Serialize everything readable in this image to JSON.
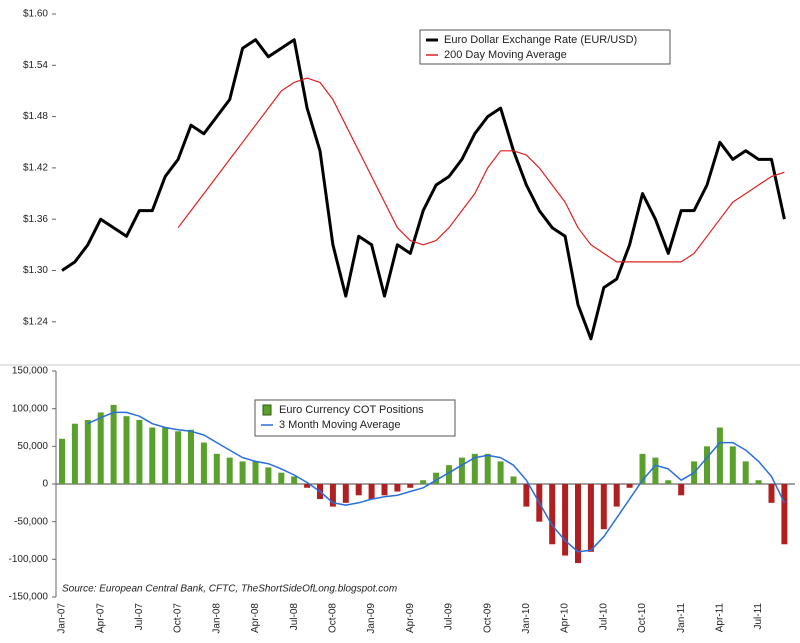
{
  "chart_data": [
    {
      "type": "line",
      "ylim": [
        1.2,
        1.6
      ],
      "yticks": [
        {
          "value": 1.24,
          "label": "$1.24"
        },
        {
          "value": 1.3,
          "label": "$1.30"
        },
        {
          "value": 1.36,
          "label": "$1.36"
        },
        {
          "value": 1.42,
          "label": "$1.42"
        },
        {
          "value": 1.48,
          "label": "$1.48"
        },
        {
          "value": 1.54,
          "label": "$1.54"
        },
        {
          "value": 1.6,
          "label": "$1.60"
        }
      ],
      "series": [
        {
          "name": "Euro Dollar Exchange Rate (EUR/USD)",
          "color": "#000000",
          "values": [
            1.3,
            1.31,
            1.33,
            1.36,
            1.35,
            1.34,
            1.37,
            1.37,
            1.41,
            1.43,
            1.47,
            1.46,
            1.48,
            1.5,
            1.56,
            1.57,
            1.55,
            1.56,
            1.57,
            1.49,
            1.44,
            1.33,
            1.27,
            1.34,
            1.33,
            1.27,
            1.33,
            1.32,
            1.37,
            1.4,
            1.41,
            1.43,
            1.46,
            1.48,
            1.49,
            1.44,
            1.4,
            1.37,
            1.35,
            1.34,
            1.26,
            1.22,
            1.28,
            1.29,
            1.33,
            1.39,
            1.36,
            1.32,
            1.37,
            1.37,
            1.4,
            1.45,
            1.43,
            1.44,
            1.43,
            1.43,
            1.36
          ]
        },
        {
          "name": "200 Day Moving Average",
          "color": "#e02020",
          "values": [
            null,
            null,
            null,
            null,
            null,
            null,
            null,
            null,
            null,
            1.35,
            1.37,
            1.39,
            1.41,
            1.43,
            1.45,
            1.47,
            1.49,
            1.51,
            1.52,
            1.525,
            1.52,
            1.5,
            1.47,
            1.44,
            1.41,
            1.38,
            1.35,
            1.335,
            1.33,
            1.335,
            1.35,
            1.37,
            1.39,
            1.42,
            1.44,
            1.44,
            1.435,
            1.42,
            1.4,
            1.38,
            1.35,
            1.33,
            1.32,
            1.31,
            1.31,
            1.31,
            1.31,
            1.31,
            1.31,
            1.32,
            1.34,
            1.36,
            1.38,
            1.39,
            1.4,
            1.41,
            1.415
          ]
        }
      ]
    },
    {
      "type": "bar",
      "annotation": "Source: European Central Bank, CFTC, TheShortSideOfLong.blogspot.com",
      "categories": [
        "Jan-07",
        null,
        null,
        "Apr-07",
        null,
        null,
        "Jul-07",
        null,
        null,
        "Oct-07",
        null,
        null,
        "Jan-08",
        null,
        null,
        "Apr-08",
        null,
        null,
        "Jul-08",
        null,
        null,
        "Oct-08",
        null,
        null,
        "Jan-09",
        null,
        null,
        "Apr-09",
        null,
        null,
        "Jul-09",
        null,
        null,
        "Oct-09",
        null,
        null,
        "Jan-10",
        null,
        null,
        "Apr-10",
        null,
        null,
        "Jul-10",
        null,
        null,
        "Oct-10",
        null,
        null,
        "Jan-11",
        null,
        null,
        "Apr-11",
        null,
        null,
        "Jul-11",
        null,
        null
      ],
      "ylim": [
        -150000,
        150000
      ],
      "yticks": [
        {
          "value": -150000,
          "label": "-150,000"
        },
        {
          "value": -100000,
          "label": "-100,000"
        },
        {
          "value": -50000,
          "label": "-50,000"
        },
        0,
        {
          "value": 50000,
          "label": "50,000"
        },
        {
          "value": 100000,
          "label": "100,000"
        },
        {
          "value": 150000,
          "label": "150,000"
        }
      ],
      "series": [
        {
          "name": "Euro Currency COT Positions",
          "color": "#5aa02c",
          "negative_color": "#b02020",
          "values": [
            60000,
            80000,
            85000,
            95000,
            105000,
            90000,
            85000,
            75000,
            75000,
            70000,
            72000,
            55000,
            40000,
            35000,
            30000,
            30000,
            22000,
            15000,
            10000,
            -5000,
            -20000,
            -30000,
            -25000,
            -15000,
            -20000,
            -15000,
            -10000,
            -5000,
            5000,
            15000,
            25000,
            35000,
            40000,
            40000,
            30000,
            10000,
            -30000,
            -50000,
            -80000,
            -95000,
            -105000,
            -90000,
            -60000,
            -30000,
            -5000,
            40000,
            35000,
            5000,
            -15000,
            30000,
            50000,
            75000,
            50000,
            30000,
            5000,
            -25000,
            -80000
          ]
        },
        {
          "name": "3 Month Moving Average",
          "type": "line",
          "color": "#2a6fdb",
          "values": [
            null,
            null,
            80000,
            88000,
            95000,
            95000,
            90000,
            80000,
            75000,
            72000,
            70000,
            65000,
            55000,
            45000,
            35000,
            30000,
            27000,
            20000,
            12000,
            2000,
            -10000,
            -25000,
            -28000,
            -25000,
            -20000,
            -17000,
            -15000,
            -10000,
            -5000,
            5000,
            15000,
            25000,
            35000,
            38000,
            35000,
            25000,
            5000,
            -25000,
            -55000,
            -75000,
            -90000,
            -88000,
            -70000,
            -45000,
            -20000,
            5000,
            25000,
            20000,
            5000,
            15000,
            35000,
            55000,
            55000,
            45000,
            30000,
            10000,
            -25000
          ]
        }
      ]
    }
  ]
}
